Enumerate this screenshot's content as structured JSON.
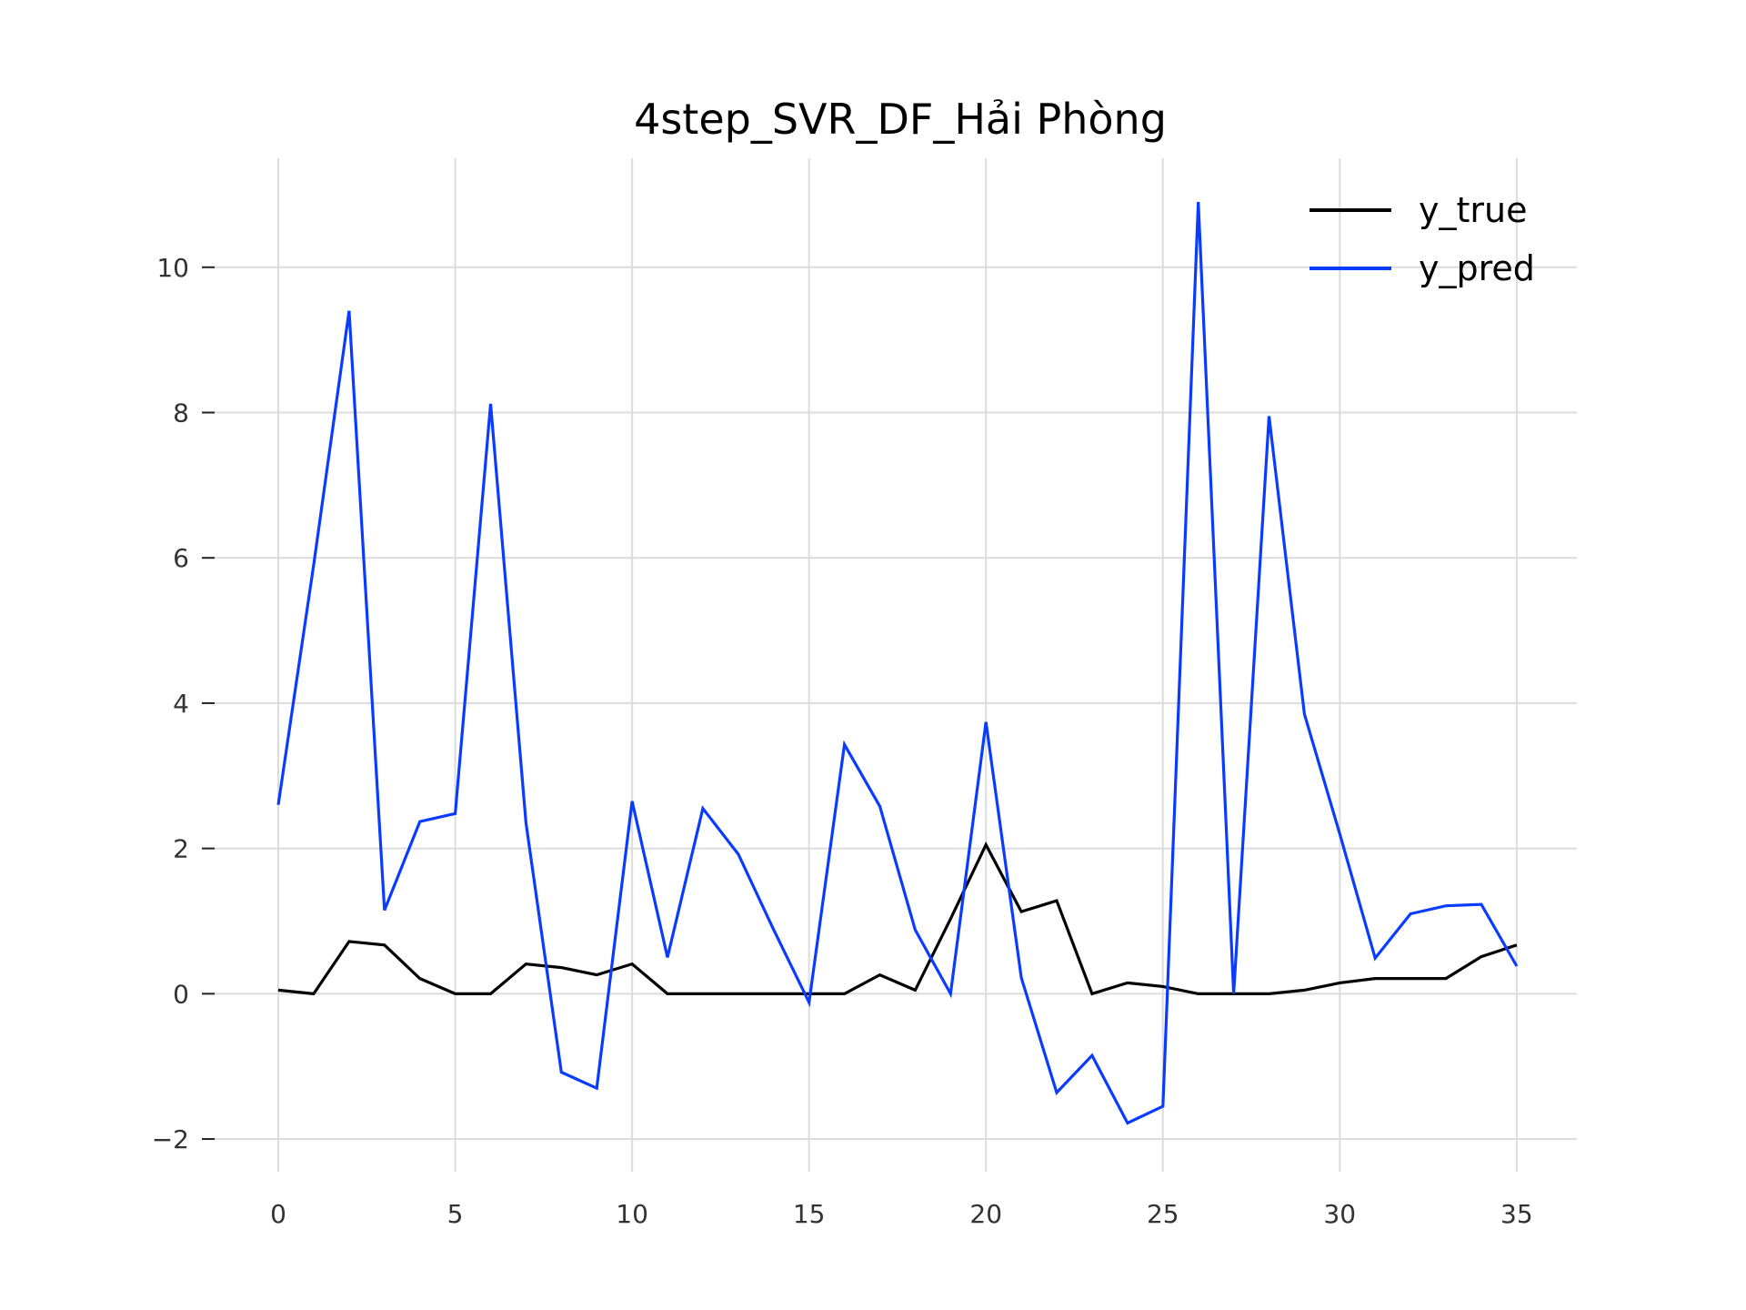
{
  "chart_data": {
    "type": "line",
    "title": "4step_SVR_DF_Hải Phòng",
    "xlabel": "",
    "ylabel": "",
    "xlim": [
      -1.8,
      36.7
    ],
    "ylim": [
      -2.45,
      11.5
    ],
    "xticks": [
      0,
      5,
      10,
      15,
      20,
      25,
      30,
      35
    ],
    "yticks": [
      -2,
      0,
      2,
      4,
      6,
      8,
      10
    ],
    "ytick_labels": [
      "−2",
      "0",
      "2",
      "4",
      "6",
      "8",
      "10"
    ],
    "grid": true,
    "legend_position": "top-right",
    "x": [
      0,
      1,
      2,
      3,
      4,
      5,
      6,
      7,
      8,
      9,
      10,
      11,
      12,
      13,
      14,
      15,
      16,
      17,
      18,
      19,
      20,
      21,
      22,
      23,
      24,
      25,
      26,
      27,
      28,
      29,
      30,
      31,
      32,
      33,
      34,
      35
    ],
    "series": [
      {
        "name": "y_true",
        "color": "#000000",
        "values": [
          0.05,
          0.0,
          0.72,
          0.67,
          0.21,
          0.0,
          0.0,
          0.41,
          0.36,
          0.26,
          0.41,
          0.0,
          0.0,
          0.0,
          0.0,
          0.0,
          0.0,
          0.26,
          0.05,
          1.03,
          2.05,
          1.13,
          1.28,
          0.0,
          0.15,
          0.1,
          0.0,
          0.0,
          0.0,
          0.05,
          0.15,
          0.21,
          0.21,
          0.21,
          0.51,
          0.67
        ]
      },
      {
        "name": "y_pred",
        "color": "#0a3cff",
        "values": [
          2.6,
          5.9,
          9.4,
          1.15,
          2.37,
          2.48,
          8.12,
          2.35,
          -1.08,
          -1.3,
          2.65,
          0.5,
          2.55,
          1.92,
          0.88,
          -0.12,
          3.43,
          2.58,
          0.88,
          0.0,
          3.74,
          0.22,
          -1.36,
          -0.85,
          -1.78,
          -1.55,
          10.9,
          0.0,
          7.95,
          3.85,
          2.2,
          0.49,
          1.1,
          1.21,
          1.23,
          0.38
        ]
      }
    ]
  }
}
